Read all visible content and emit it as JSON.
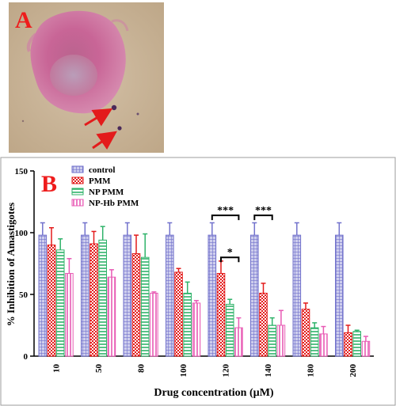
{
  "panels": {
    "a_letter": "A",
    "b_letter": "B"
  },
  "colors": {
    "letter": "#ee1c1c",
    "arrow": "#e31b1b",
    "cell": "#c7558d",
    "background_tissue": "#cdb59c",
    "axis": "#000000",
    "border": "#9c9c9c"
  },
  "chart_data": {
    "type": "bar",
    "title": "",
    "xlabel": "Drug concentration (µM)",
    "ylabel": "% Inhibition of Amastigotes",
    "ylim": [
      0,
      150
    ],
    "yticks": [
      "0",
      "50",
      "100",
      "150"
    ],
    "categories": [
      "10",
      "50",
      "80",
      "100",
      "120",
      "140",
      "180",
      "200"
    ],
    "series": [
      {
        "name": "control",
        "color": "#7272cc",
        "pattern": "grid",
        "values": [
          98,
          98,
          98,
          98,
          98,
          98,
          98,
          98
        ],
        "errors": [
          10,
          10,
          10,
          10,
          10,
          10,
          10,
          10
        ]
      },
      {
        "name": "PMM",
        "color": "#e31b1b",
        "pattern": "check",
        "values": [
          90,
          91,
          83,
          68,
          67,
          51,
          38,
          19
        ],
        "errors": [
          14,
          10,
          15,
          3,
          10,
          8,
          5,
          6
        ]
      },
      {
        "name": "NP PMM",
        "color": "#2fb36a",
        "pattern": "hstripe",
        "values": [
          86,
          94,
          80,
          51,
          42,
          25,
          23,
          20
        ],
        "errors": [
          9,
          11,
          19,
          9,
          4,
          6,
          4,
          1
        ]
      },
      {
        "name": "NP-Hb PMM",
        "color": "#e85ab4",
        "pattern": "vstripe",
        "values": [
          67,
          64,
          51,
          43,
          23,
          25,
          18,
          12
        ],
        "errors": [
          12,
          6,
          1,
          2,
          8,
          12,
          6,
          4
        ]
      }
    ],
    "significance": [
      {
        "label": "***",
        "category": "120",
        "from_series": 0,
        "to_series": 3,
        "y": 114
      },
      {
        "label": "*",
        "category": "120",
        "from_series": 1,
        "to_series": 3,
        "y": 80
      },
      {
        "label": "***",
        "category": "140",
        "from_series": 0,
        "to_series": 2,
        "y": 114
      }
    ],
    "legend_placement": "top-left",
    "grid": false
  }
}
